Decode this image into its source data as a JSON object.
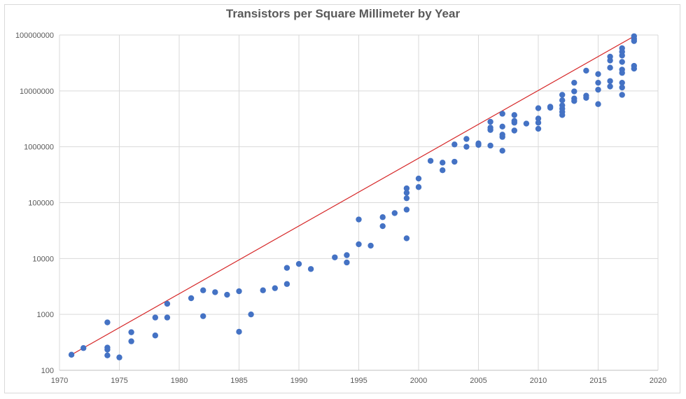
{
  "chart_data": {
    "type": "scatter",
    "title": "Transistors per Square Millimeter by Year",
    "xlabel": "",
    "ylabel": "",
    "xlim": [
      1970,
      2020
    ],
    "ylim": [
      100,
      100000000
    ],
    "yscale": "log",
    "grid": true,
    "legend": "none",
    "x_ticks": [
      "1970",
      "1975",
      "1980",
      "1985",
      "1990",
      "1995",
      "2000",
      "2005",
      "2010",
      "2015",
      "2020"
    ],
    "y_ticks": [
      "100",
      "1000",
      "10000",
      "100000",
      "1000000",
      "10000000",
      "100000000"
    ],
    "series": [
      {
        "marker_color": "#4472c4",
        "points": [
          [
            1971,
            190
          ],
          [
            1972,
            250
          ],
          [
            1974,
            720
          ],
          [
            1974,
            255
          ],
          [
            1974,
            235
          ],
          [
            1974,
            185
          ],
          [
            1975,
            170
          ],
          [
            1976,
            480
          ],
          [
            1976,
            330
          ],
          [
            1978,
            880
          ],
          [
            1978,
            420
          ],
          [
            1979,
            1550
          ],
          [
            1979,
            880
          ],
          [
            1981,
            1950
          ],
          [
            1982,
            2700
          ],
          [
            1982,
            930
          ],
          [
            1983,
            2500
          ],
          [
            1984,
            2250
          ],
          [
            1985,
            2600
          ],
          [
            1985,
            490
          ],
          [
            1986,
            1000
          ],
          [
            1987,
            2700
          ],
          [
            1988,
            2950
          ],
          [
            1989,
            6800
          ],
          [
            1989,
            3500
          ],
          [
            1990,
            8000
          ],
          [
            1991,
            6500
          ],
          [
            1993,
            10500
          ],
          [
            1994,
            11500
          ],
          [
            1994,
            8500
          ],
          [
            1995,
            50000
          ],
          [
            1995,
            18000
          ],
          [
            1996,
            17000
          ],
          [
            1997,
            55000
          ],
          [
            1997,
            38000
          ],
          [
            1998,
            65000
          ],
          [
            1999,
            180000
          ],
          [
            1999,
            150000
          ],
          [
            1999,
            120000
          ],
          [
            1999,
            75000
          ],
          [
            1999,
            23000
          ],
          [
            2000,
            270000
          ],
          [
            2000,
            190000
          ],
          [
            2001,
            560000
          ],
          [
            2002,
            520000
          ],
          [
            2002,
            380000
          ],
          [
            2003,
            1100000
          ],
          [
            2003,
            540000
          ],
          [
            2004,
            1380000
          ],
          [
            2004,
            1000000
          ],
          [
            2005,
            1150000
          ],
          [
            2005,
            1080000
          ],
          [
            2006,
            2800000
          ],
          [
            2006,
            2200000
          ],
          [
            2006,
            2000000
          ],
          [
            2006,
            1050000
          ],
          [
            2007,
            3900000
          ],
          [
            2007,
            2300000
          ],
          [
            2007,
            1650000
          ],
          [
            2007,
            1500000
          ],
          [
            2007,
            850000
          ],
          [
            2008,
            3700000
          ],
          [
            2008,
            2900000
          ],
          [
            2008,
            2700000
          ],
          [
            2008,
            1950000
          ],
          [
            2009,
            2600000
          ],
          [
            2010,
            4900000
          ],
          [
            2010,
            3200000
          ],
          [
            2010,
            2700000
          ],
          [
            2010,
            2100000
          ],
          [
            2011,
            5200000
          ],
          [
            2011,
            5000000
          ],
          [
            2012,
            8500000
          ],
          [
            2012,
            6800000
          ],
          [
            2012,
            5500000
          ],
          [
            2012,
            4800000
          ],
          [
            2012,
            4200000
          ],
          [
            2012,
            3700000
          ],
          [
            2013,
            14000000
          ],
          [
            2013,
            9800000
          ],
          [
            2013,
            7300000
          ],
          [
            2013,
            6600000
          ],
          [
            2014,
            23000000
          ],
          [
            2014,
            8200000
          ],
          [
            2014,
            7500000
          ],
          [
            2015,
            20000000
          ],
          [
            2015,
            14000000
          ],
          [
            2015,
            10500000
          ],
          [
            2015,
            5800000
          ],
          [
            2016,
            41000000
          ],
          [
            2016,
            35000000
          ],
          [
            2016,
            26000000
          ],
          [
            2016,
            15000000
          ],
          [
            2016,
            12000000
          ],
          [
            2017,
            58000000
          ],
          [
            2017,
            50000000
          ],
          [
            2017,
            43000000
          ],
          [
            2017,
            33000000
          ],
          [
            2017,
            24000000
          ],
          [
            2017,
            21000000
          ],
          [
            2017,
            14000000
          ],
          [
            2017,
            11500000
          ],
          [
            2017,
            8500000
          ],
          [
            2018,
            95000000
          ],
          [
            2018,
            85000000
          ],
          [
            2018,
            78000000
          ],
          [
            2018,
            28000000
          ],
          [
            2018,
            25000000
          ]
        ]
      }
    ],
    "trendline": {
      "color": "#d62728",
      "from": [
        1971,
        190
      ],
      "to": [
        2018,
        95000000
      ]
    }
  }
}
